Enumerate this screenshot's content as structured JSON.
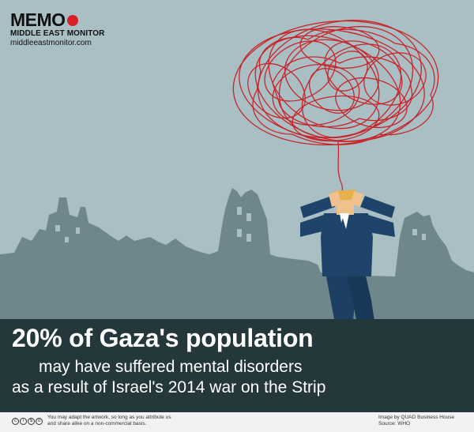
{
  "brand": {
    "name": "MEMO",
    "subtitle": "MIDDLE EAST MONITOR",
    "url": "middleeastmonitor.com",
    "dot_color": "#d62027"
  },
  "headline": {
    "line1": "20% of Gaza's population",
    "line2": "may have suffered mental disorders",
    "line3": "as a result of Israel's 2014 war on the Strip"
  },
  "footer": {
    "license_icons": [
      "cc-icon",
      "by-icon",
      "nc-icon",
      "sa-icon"
    ],
    "license_line1": "You may adapt the artwork, so long as you attribute us",
    "license_line2": "and share alike on a non-commercial basis.",
    "credit_line1": "Image by QUAD Business House",
    "credit_line2": "Source: WHO"
  },
  "colors": {
    "background": "#a9bfc4",
    "ruins": "#6f868b",
    "banner": "#24383c",
    "suit": "#1f4469",
    "scribble": "#c6262b"
  }
}
